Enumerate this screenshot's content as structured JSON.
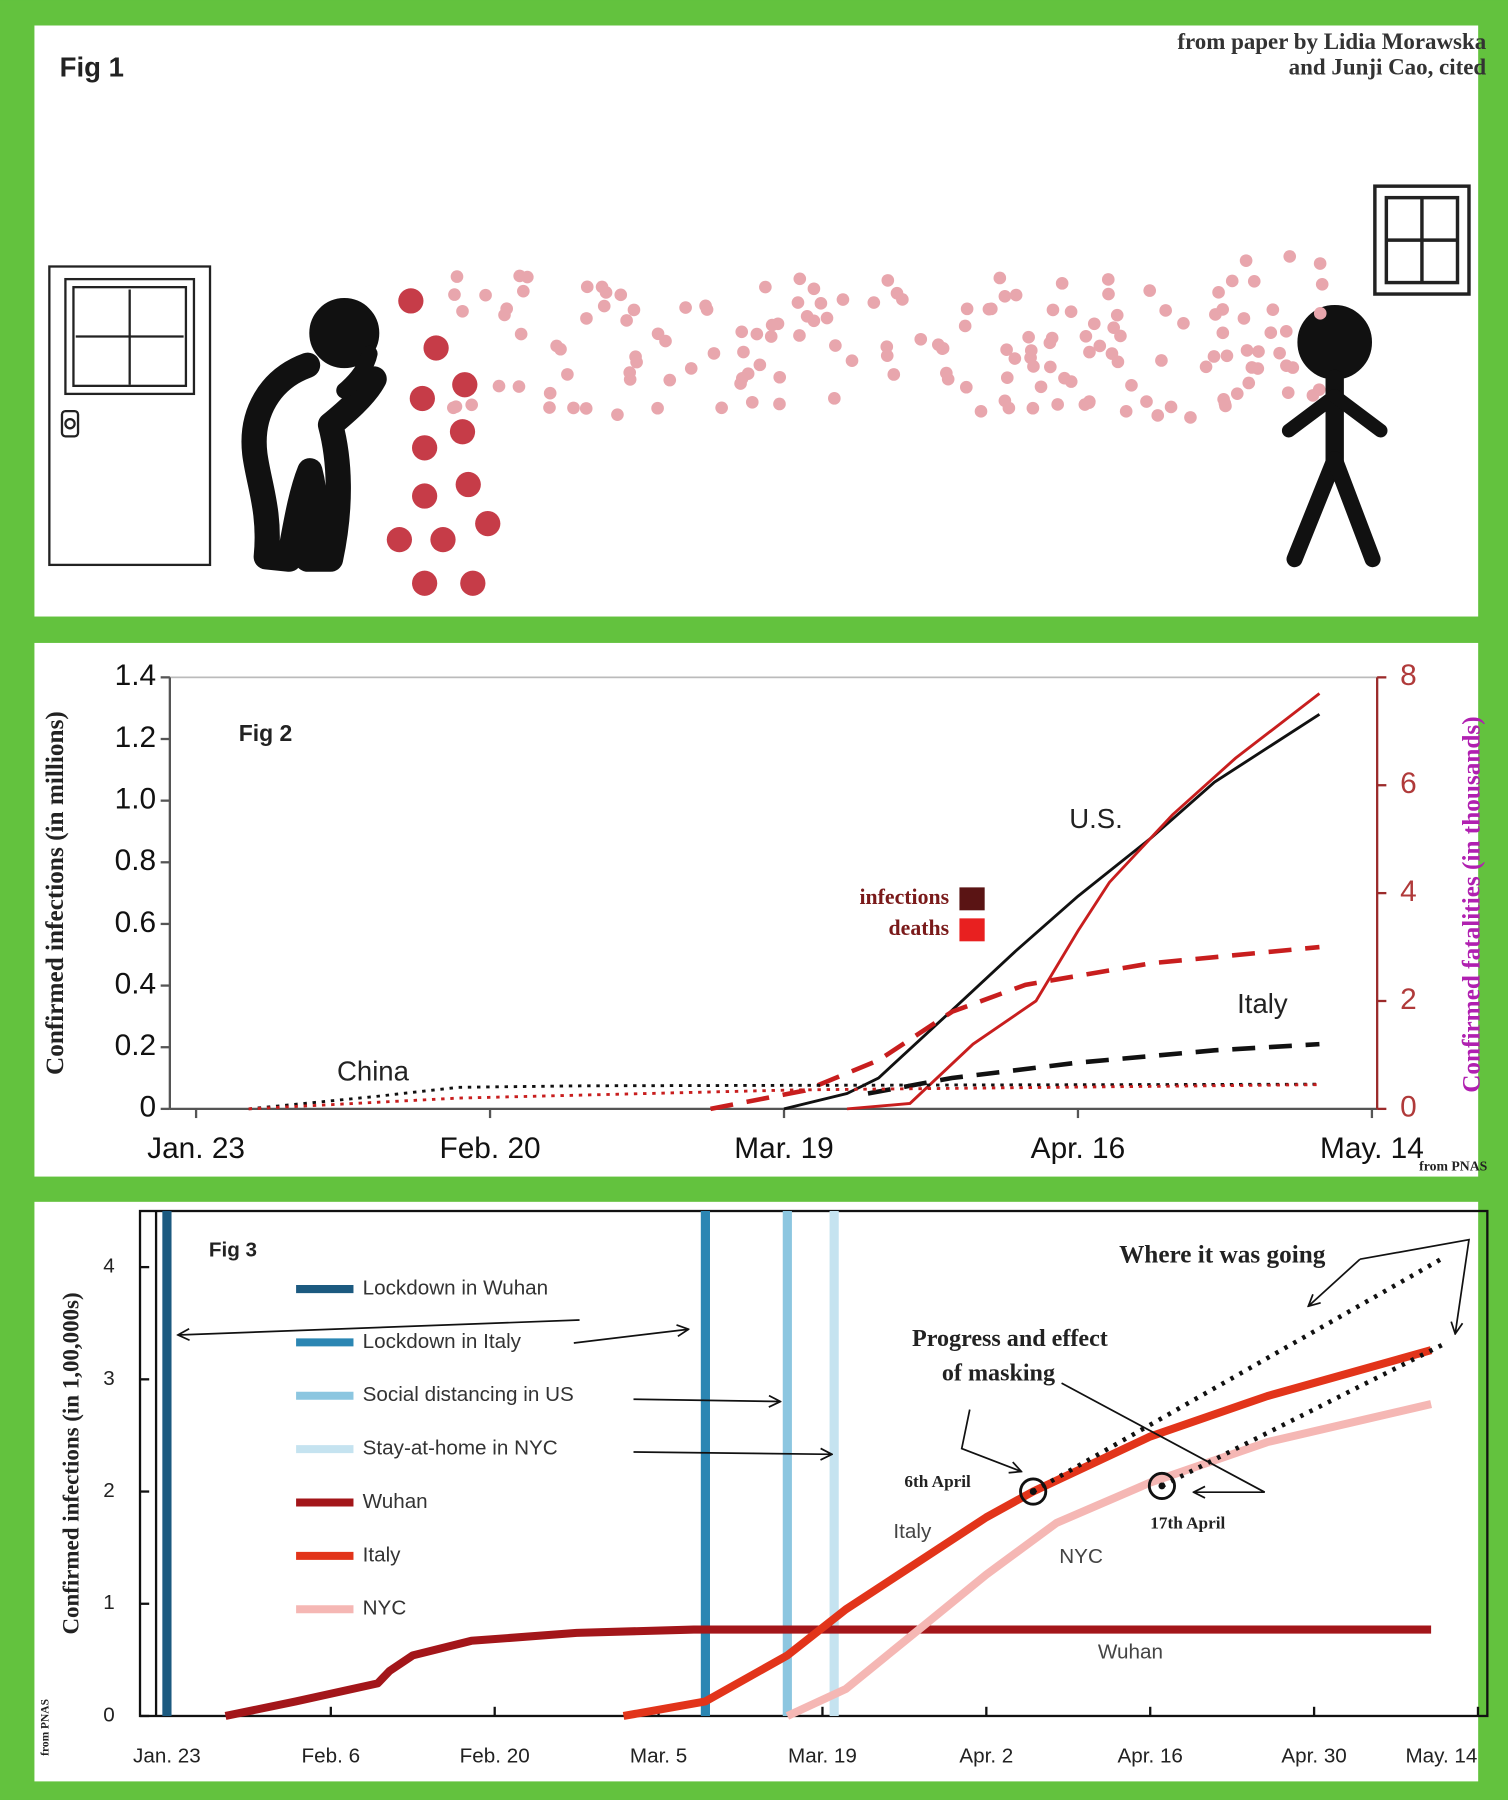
{
  "figure1": {
    "label": "Fig 1",
    "credit": [
      "from paper by Lidia Morawska",
      "and Junji Cao, cited"
    ]
  },
  "chart_data": [
    {
      "type": "line",
      "label": "Fig 2",
      "y_label": "Confirmed infections (in millions)",
      "y2_label": "Confirmed fatalities (in thousands)",
      "source": "from PNAS",
      "xlim": [
        20.5,
        135.5
      ],
      "xticks": [
        {
          "value": 23,
          "label": "Jan. 23"
        },
        {
          "value": 51,
          "label": "Feb. 20"
        },
        {
          "value": 79,
          "label": "Mar. 19"
        },
        {
          "value": 107,
          "label": "Apr. 16"
        },
        {
          "value": 135,
          "label": "May. 14"
        }
      ],
      "ylim": [
        0,
        1.4
      ],
      "yticks": [
        0,
        0.2,
        0.4,
        0.6,
        0.8,
        {
          "value": 1,
          "label": "1.0"
        },
        1.2,
        1.4
      ],
      "y2lim": [
        0,
        8
      ],
      "y2ticks": [
        0,
        2,
        4,
        6,
        8
      ],
      "measures": [
        {
          "name": "infections",
          "color": "#111111",
          "legend_color": "#5a1414",
          "axis": "y"
        },
        {
          "name": "deaths",
          "color": "#c81e1e",
          "legend_color": "#e82020",
          "axis": "y2"
        }
      ],
      "series": [
        {
          "name": "U.S.",
          "dash": "solid",
          "lines": [
            {
              "x": [
                79,
                85,
                88,
                95,
                101,
                107,
                114,
                120,
                130
              ],
              "values": [
                0,
                0.05,
                0.1,
                0.32,
                0.51,
                0.69,
                0.88,
                1.06,
                1.28
              ]
            },
            {
              "x": [
                85,
                91,
                97,
                103,
                107,
                110,
                116,
                122,
                130
              ],
              "values": [
                0,
                0.1,
                1.2,
                2.0,
                3.3,
                4.2,
                5.45,
                6.5,
                7.7
              ]
            }
          ]
        },
        {
          "name": "Italy",
          "dash": "dashed",
          "lines": [
            {
              "x": [
                87,
                95,
                107,
                120,
                130
              ],
              "values": [
                0.05,
                0.1,
                0.15,
                0.19,
                0.21
              ]
            },
            {
              "x": [
                72,
                81,
                88,
                95,
                102,
                114,
                130
              ],
              "values": [
                0,
                0.34,
                0.9,
                1.8,
                2.3,
                2.7,
                3.0
              ]
            }
          ]
        },
        {
          "name": "China",
          "dash": "dotted",
          "lines": [
            {
              "x": [
                28,
                40,
                48,
                60,
                130
              ],
              "values": [
                0,
                0.04,
                0.07,
                0.075,
                0.08
              ]
            },
            {
              "x": [
                28,
                48,
                80,
                130
              ],
              "values": [
                0,
                0.2,
                0.35,
                0.45
              ]
            }
          ]
        }
      ]
    },
    {
      "type": "line",
      "label": "Fig 3",
      "y_label": "Confirmed infections (in 1,00,000s)",
      "source": "from PNAS",
      "xlim": [
        20.7,
        135.8
      ],
      "xticks": [
        {
          "value": 23,
          "label": "Jan. 23"
        },
        {
          "value": 37,
          "label": "Feb. 6"
        },
        {
          "value": 51,
          "label": "Feb. 20"
        },
        {
          "value": 65,
          "label": "Mar. 5"
        },
        {
          "value": 79,
          "label": "Mar. 19"
        },
        {
          "value": 93,
          "label": "Apr. 2"
        },
        {
          "value": 107,
          "label": "Apr. 16"
        },
        {
          "value": 121,
          "label": "Apr. 30"
        },
        {
          "value": 135,
          "label": "May. 14"
        }
      ],
      "ylim": [
        0,
        4.5
      ],
      "yticks": [
        0,
        1,
        2,
        3,
        4
      ],
      "events": [
        {
          "name": "Lockdown in Wuhan",
          "x": 23,
          "color": "#1c5a80"
        },
        {
          "name": "Lockdown in Italy",
          "x": 69,
          "color": "#2b86b3"
        },
        {
          "name": "Social distancing in US",
          "x": 76,
          "color": "#8cc6e0"
        },
        {
          "name": "Stay-at-home in NYC",
          "x": 80,
          "color": "#c5e3f0"
        }
      ],
      "series": [
        {
          "name": "Wuhan",
          "color": "#a3161a",
          "x": [
            28,
            34,
            41,
            42,
            44,
            49,
            58,
            68,
            131
          ],
          "values": [
            0,
            0.13,
            0.29,
            0.4,
            0.54,
            0.67,
            0.74,
            0.77,
            0.77
          ]
        },
        {
          "name": "Italy",
          "color": "#e2341a",
          "x": [
            62,
            69,
            76,
            81,
            87,
            93,
            97,
            107,
            117,
            131
          ],
          "values": [
            0,
            0.13,
            0.54,
            0.95,
            1.36,
            1.77,
            2.0,
            2.49,
            2.85,
            3.26
          ]
        },
        {
          "name": "NYC",
          "color": "#f5b7b4",
          "x": [
            76,
            81,
            87,
            93,
            99,
            107,
            117,
            131
          ],
          "values": [
            0,
            0.24,
            0.75,
            1.26,
            1.72,
            2.08,
            2.44,
            2.78
          ]
        }
      ],
      "projections": [
        {
          "x": [
            97,
            132
          ],
          "values": [
            2.0,
            4.08
          ]
        },
        {
          "x": [
            108,
            132
          ],
          "values": [
            2.05,
            3.31
          ]
        }
      ],
      "markers": [
        {
          "label": "6th April",
          "x": 97,
          "value": 2.0
        },
        {
          "label": "17th April",
          "x": 108,
          "value": 2.05
        }
      ],
      "annotations": {
        "projection": "Where it was going",
        "masking": [
          "Progress and effect",
          "of masking"
        ]
      }
    }
  ]
}
